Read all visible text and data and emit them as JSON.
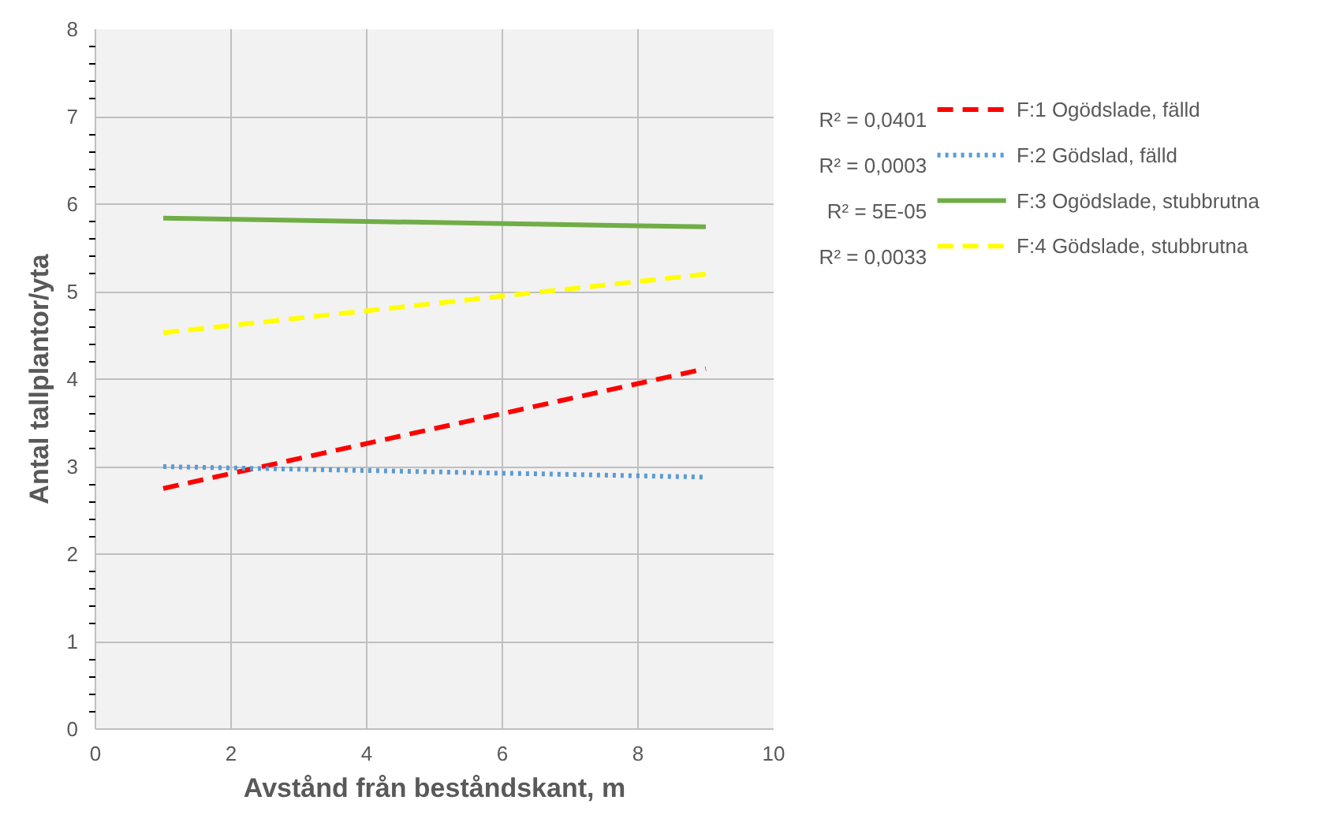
{
  "chart_data": {
    "type": "line",
    "xlabel": "Avstånd från beståndskant, m",
    "ylabel": "Antal tallplantor/yta",
    "xlim": [
      0,
      10
    ],
    "xticks": [
      0,
      2,
      4,
      6,
      8,
      10
    ],
    "ylim": [
      0,
      8
    ],
    "yticks": [
      0,
      1,
      2,
      3,
      4,
      5,
      6,
      7,
      8
    ],
    "grid": true,
    "legend": "right",
    "x": [
      1,
      9
    ],
    "series": [
      {
        "name": "F:1 Ogödslade, fälld",
        "color": "#ff0000",
        "values": [
          2.75,
          4.12
        ],
        "line_style": "dashed"
      },
      {
        "name": "F:2 Gödslad, fälld",
        "color": "#5b9bd5",
        "values": [
          3.0,
          2.88
        ],
        "line_style": "dotted"
      },
      {
        "name": "F:3 Ogödslade, stubbrutna",
        "color": "#70ad47",
        "values": [
          5.84,
          5.74
        ],
        "line_style": "solid"
      },
      {
        "name": "F:4 Gödslade, stubbrutna",
        "color": "#ffff00",
        "values": [
          4.53,
          5.2
        ],
        "line_style": "dashed"
      }
    ],
    "annotations": [
      "R² = 0,0401",
      "R² = 0,0003",
      "R² = 5E-05",
      "R² = 0,0033"
    ]
  }
}
